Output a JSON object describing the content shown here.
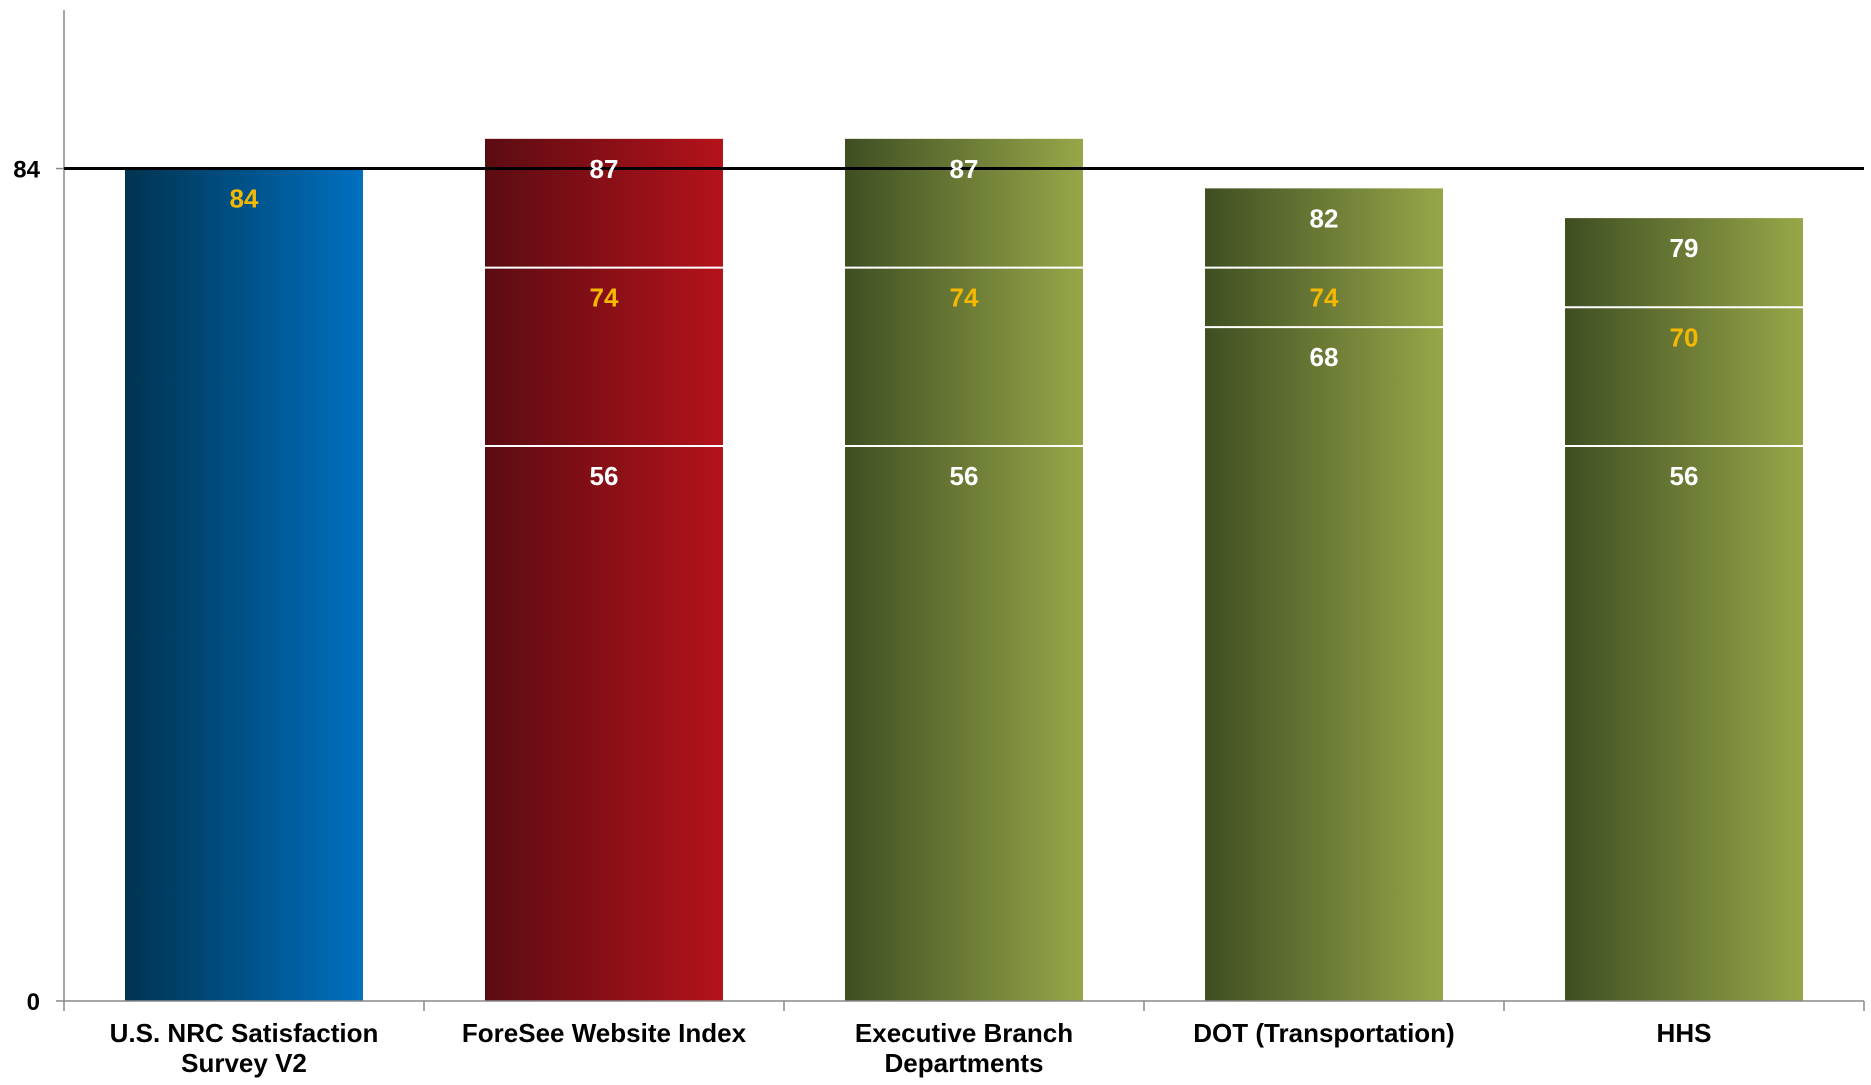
{
  "chart_data": {
    "type": "bar",
    "title": "",
    "xlabel": "",
    "ylabel": "",
    "ylim": [
      0,
      100
    ],
    "y_tick_labels": [
      "0",
      "84"
    ],
    "reference_line": {
      "value": 84
    },
    "grid": false,
    "legend": "none",
    "categories": [
      {
        "label_lines": [
          "U.S. NRC Satisfaction",
          "Survey V2"
        ],
        "value": 84,
        "markers": [],
        "labels": [
          {
            "value": 84,
            "text": "84",
            "color": "gold"
          }
        ],
        "style": "blue"
      },
      {
        "label_lines": [
          "ForeSee Website Index"
        ],
        "value": 87,
        "markers": [
          74,
          56
        ],
        "labels": [
          {
            "value": 87,
            "text": "87",
            "color": "white"
          },
          {
            "value": 74,
            "text": "74",
            "color": "gold"
          },
          {
            "value": 56,
            "text": "56",
            "color": "white"
          }
        ],
        "style": "red"
      },
      {
        "label_lines": [
          "Executive Branch",
          "Departments"
        ],
        "value": 87,
        "markers": [
          74,
          56
        ],
        "labels": [
          {
            "value": 87,
            "text": "87",
            "color": "white"
          },
          {
            "value": 74,
            "text": "74",
            "color": "gold"
          },
          {
            "value": 56,
            "text": "56",
            "color": "white"
          }
        ],
        "style": "olive"
      },
      {
        "label_lines": [
          "DOT (Transportation)"
        ],
        "value": 82,
        "markers": [
          74,
          68
        ],
        "labels": [
          {
            "value": 82,
            "text": "82",
            "color": "white"
          },
          {
            "value": 74,
            "text": "74",
            "color": "gold"
          },
          {
            "value": 68,
            "text": "68",
            "color": "white"
          }
        ],
        "style": "olive"
      },
      {
        "label_lines": [
          "HHS"
        ],
        "value": 79,
        "markers": [
          70,
          56
        ],
        "labels": [
          {
            "value": 79,
            "text": "79",
            "color": "white"
          },
          {
            "value": 70,
            "text": "70",
            "color": "gold"
          },
          {
            "value": 56,
            "text": "56",
            "color": "white"
          }
        ],
        "style": "olive"
      }
    ],
    "colors": {
      "blue": [
        "#003350",
        "#0070c0"
      ],
      "red": [
        "#5a0c12",
        "#b5121b"
      ],
      "olive": [
        "#3f4e22",
        "#96a749"
      ],
      "gold": "#f5b800",
      "white": "#ffffff",
      "axis": "#888888",
      "reference_line": "#000000",
      "axis_text": "#000000"
    }
  }
}
